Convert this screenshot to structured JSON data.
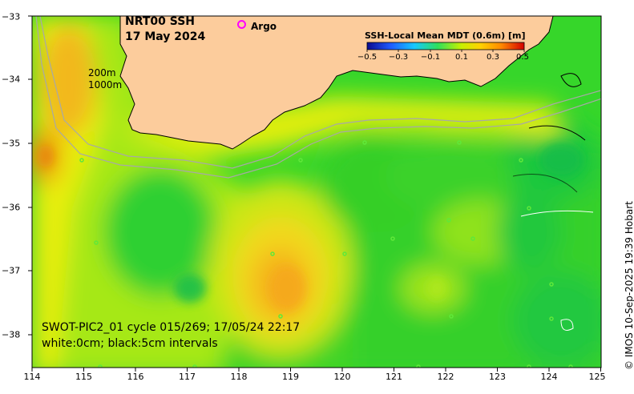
{
  "title": {
    "line1": "NRT00 SSH",
    "line2": "17 May 2024"
  },
  "legend": {
    "argo_label": "Argo",
    "argo_color": "#ff00ff"
  },
  "depth_labels": {
    "shallow": "200m",
    "deep": "1000m"
  },
  "colorbar": {
    "title": "SSH-Local Mean MDT (0.6m) [m]",
    "ticks": [
      "−0.5",
      "−0.3",
      "−0.1",
      "0.1",
      "0.3",
      "0.5"
    ],
    "colors": [
      "#0b0b8f",
      "#1f5bff",
      "#16c8ff",
      "#2fe05a",
      "#c8f000",
      "#ffd200",
      "#ff8c00",
      "#d40000"
    ]
  },
  "annotation": {
    "line1": "SWOT-PIC2_01 cycle 015/269; 17/05/24 22:17",
    "line2": "white:0cm; black:5cm intervals"
  },
  "axes": {
    "x_ticks": [
      "114",
      "115",
      "116",
      "117",
      "118",
      "119",
      "120",
      "121",
      "122",
      "123",
      "124",
      "125"
    ],
    "y_ticks": [
      "−33",
      "−34",
      "−35",
      "−36",
      "−37",
      "−38"
    ],
    "x_range": [
      114,
      125
    ],
    "y_range": [
      -38.5,
      -33
    ]
  },
  "credit": "© IMOS 10-Sep-2025 19:39 Hobart",
  "colors": {
    "land": "#fccc9c",
    "coast": "#000000",
    "bathymetry": "#a8a8a8"
  }
}
